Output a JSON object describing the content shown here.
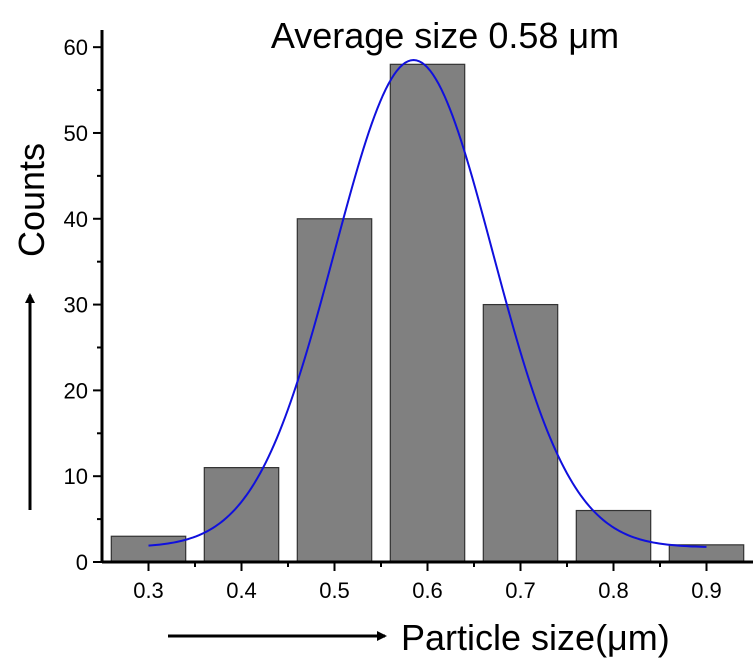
{
  "chart_data": {
    "type": "bar",
    "title": "Average size 0.58 μm",
    "xlabel": "Particle size(μm)",
    "ylabel": "Counts",
    "x": [
      0.3,
      0.4,
      0.5,
      0.6,
      0.7,
      0.8,
      0.9
    ],
    "x_tick_labels": [
      "0.3",
      "0.4",
      "0.5",
      "0.6",
      "0.7",
      "0.8",
      "0.9"
    ],
    "bar_width": 0.08,
    "values": [
      3,
      11,
      40,
      58,
      30,
      6,
      2
    ],
    "xlim": [
      0.25,
      0.95
    ],
    "ylim": [
      0,
      62
    ],
    "y_ticks": [
      0,
      10,
      20,
      30,
      40,
      50,
      60
    ],
    "y_tick_labels": [
      "0",
      "10",
      "20",
      "30",
      "40",
      "50",
      "60"
    ],
    "fit_curve": {
      "type": "gaussian",
      "x_range": [
        0.3,
        0.9
      ],
      "center": 0.585,
      "sigma": 0.085,
      "amplitude": 58.5,
      "baseline": 1.7
    },
    "grid": false,
    "colors": {
      "bars": "#808080",
      "bar_edge": "#333333",
      "fit": "#1010dd",
      "axes": "#000000"
    }
  }
}
